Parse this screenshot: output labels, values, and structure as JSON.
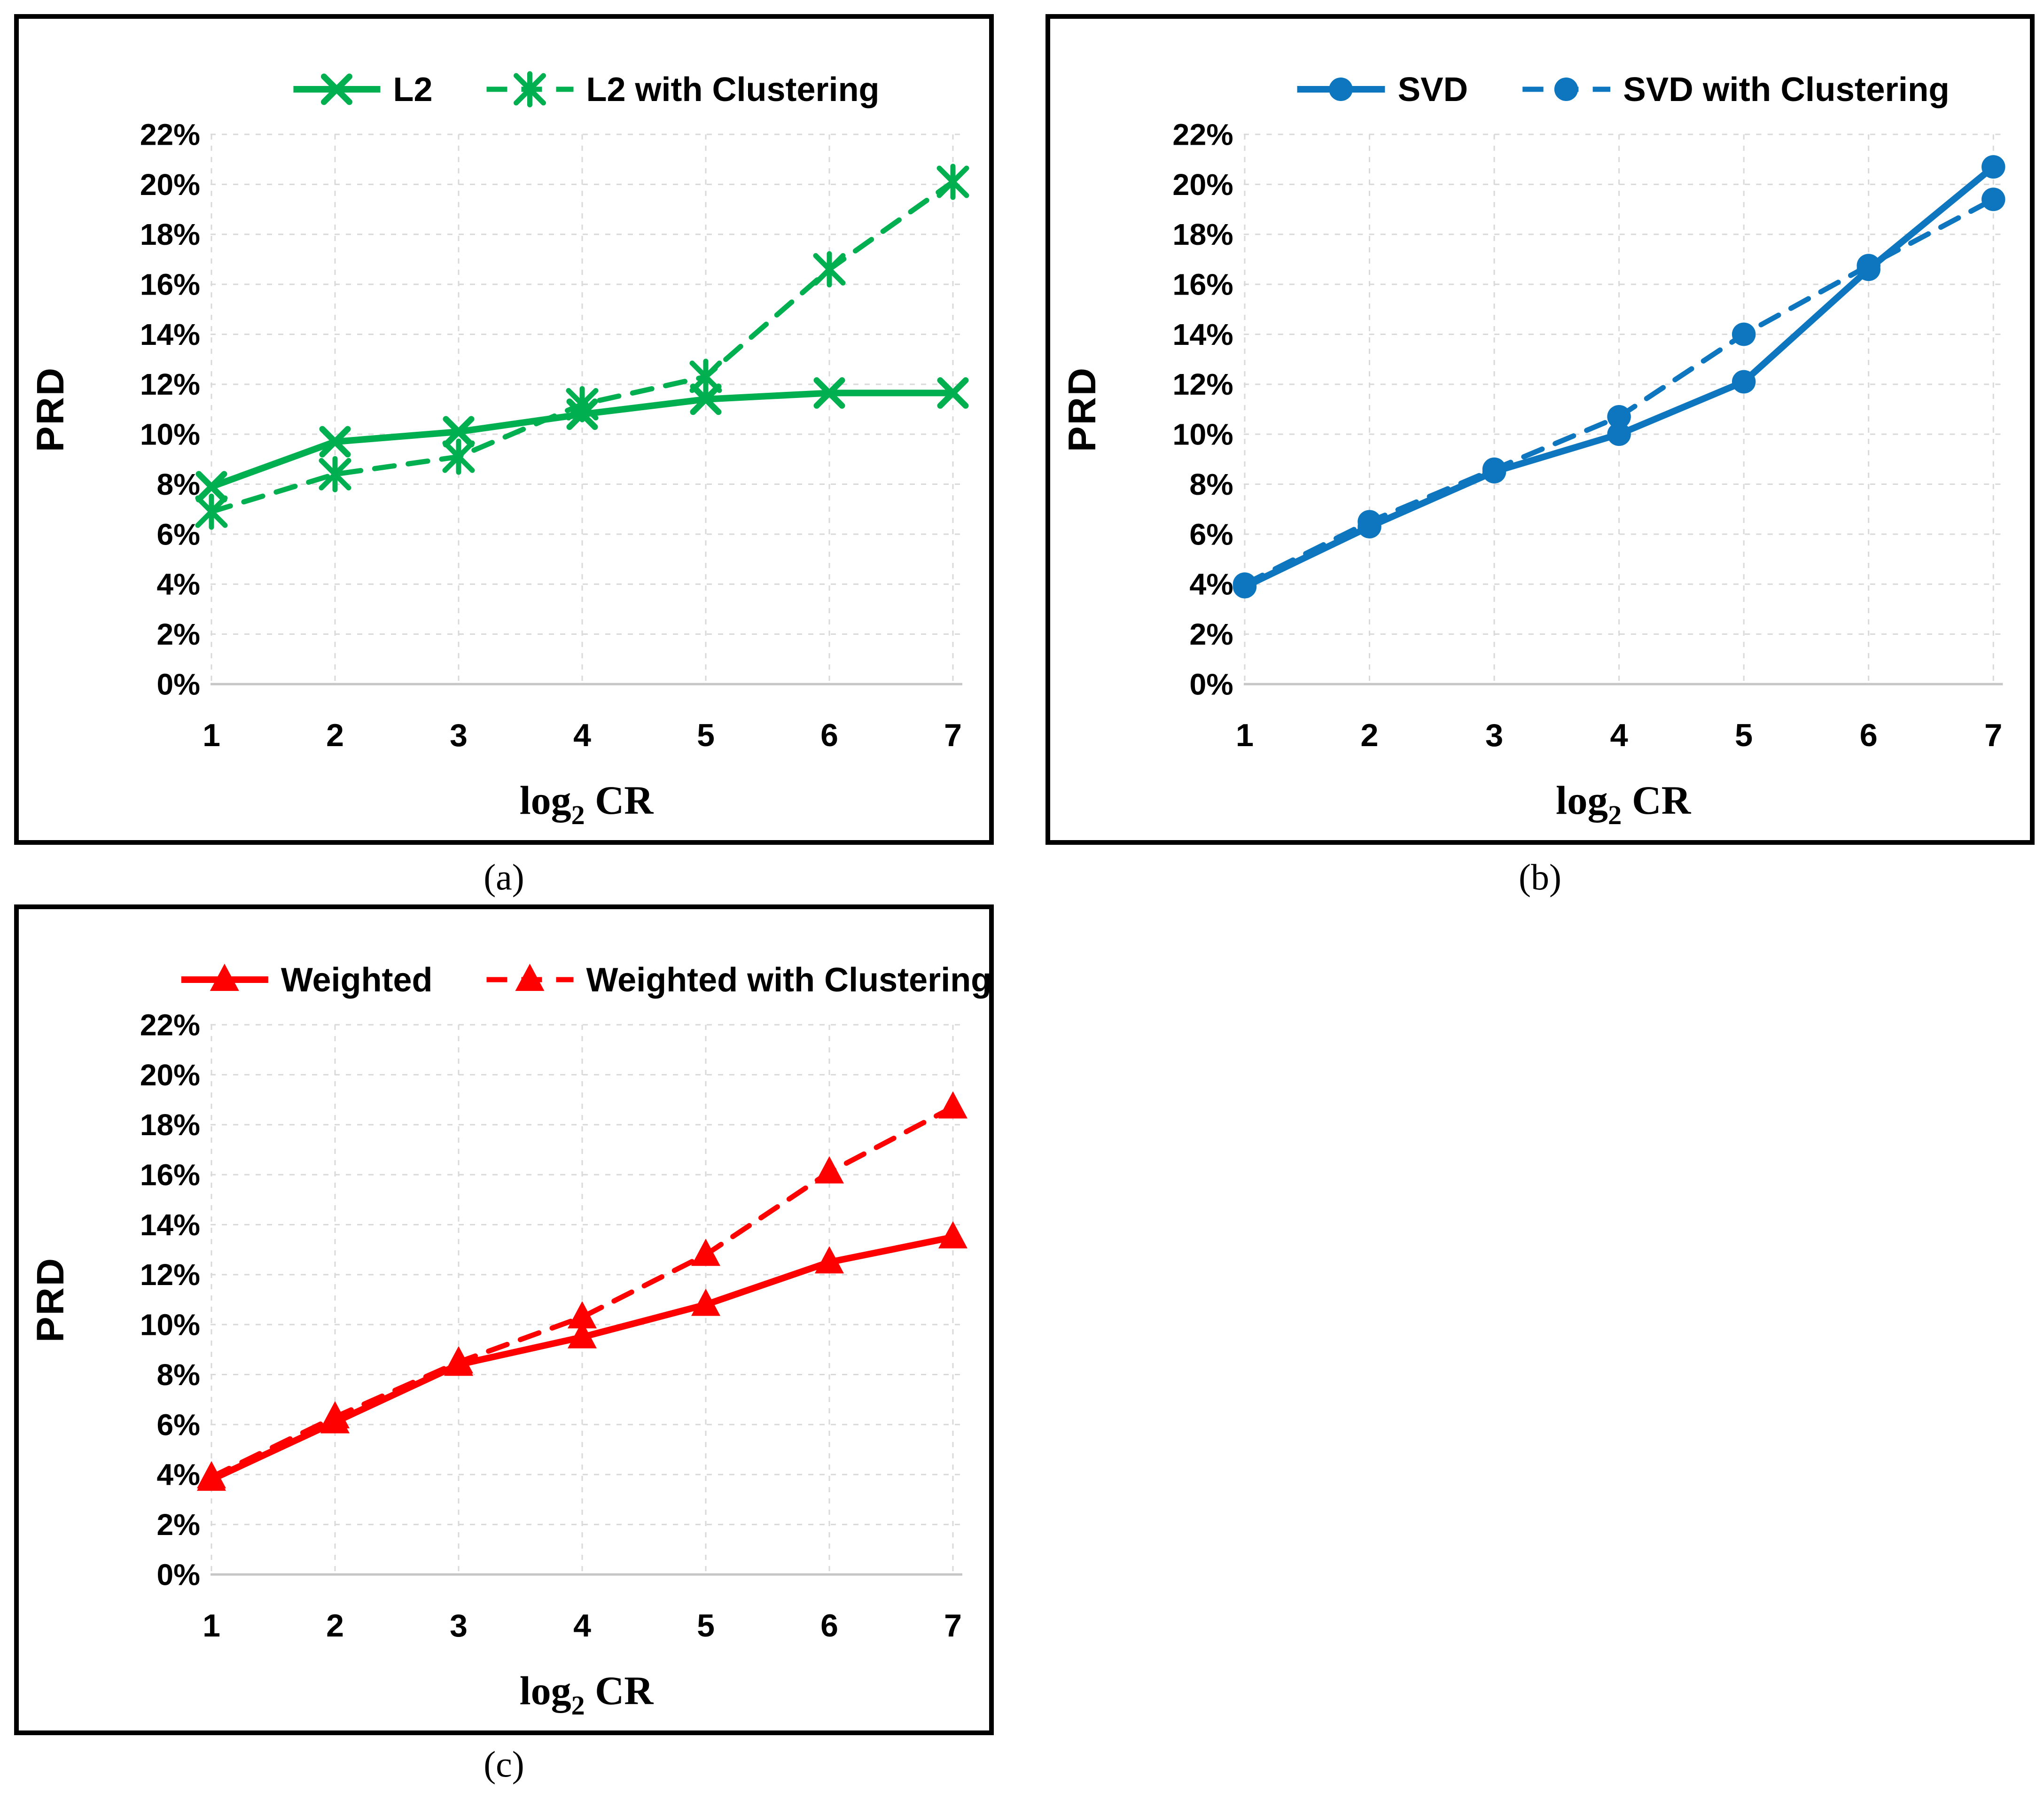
{
  "ui": {
    "background": "#FFFFFF",
    "panel_border_color": "#000000",
    "grid_color": "#D9D9D9",
    "axis_line_color": "#C6C6C6",
    "text_color": "#000000"
  },
  "chart_data": [
    {
      "id": "a",
      "type": "line",
      "caption": "(a)",
      "xlabel": "log2 CR",
      "xlabel_base": "log",
      "xlabel_sub": "2",
      "xlabel_rest": " CR",
      "ylabel": "PRD",
      "categories": [
        1,
        2,
        3,
        4,
        5,
        6,
        7
      ],
      "ylim": [
        0,
        22
      ],
      "ytick_step": 2,
      "ytick_suffix": "%",
      "grid": true,
      "legend_position": "top",
      "color": "#00B050",
      "series": [
        {
          "name": "L2",
          "dash": false,
          "marker": "x",
          "values": [
            7.9,
            9.7,
            10.1,
            10.8,
            11.4,
            11.65,
            11.65
          ]
        },
        {
          "name": "L2 with Clustering",
          "dash": true,
          "marker": "star",
          "values": [
            6.9,
            8.4,
            9.1,
            11.2,
            12.3,
            16.6,
            20.1
          ]
        }
      ]
    },
    {
      "id": "b",
      "type": "line",
      "caption": "(b)",
      "xlabel": "log2 CR",
      "xlabel_base": "log",
      "xlabel_sub": "2",
      "xlabel_rest": " CR",
      "ylabel": "PRD",
      "categories": [
        1,
        2,
        3,
        4,
        5,
        6,
        7
      ],
      "ylim": [
        0,
        22
      ],
      "ytick_step": 2,
      "ytick_suffix": "%",
      "grid": true,
      "legend_position": "top",
      "color": "#0D76BE",
      "series": [
        {
          "name": "SVD",
          "dash": false,
          "marker": "circle",
          "values": [
            3.9,
            6.3,
            8.5,
            10.0,
            12.1,
            16.6,
            20.7
          ]
        },
        {
          "name": "SVD with Clustering",
          "dash": true,
          "marker": "circle",
          "values": [
            4.0,
            6.5,
            8.6,
            10.7,
            14.0,
            16.75,
            19.4
          ]
        }
      ]
    },
    {
      "id": "c",
      "type": "line",
      "caption": "(c)",
      "xlabel": "log2 CR",
      "xlabel_base": "log",
      "xlabel_sub": "2",
      "xlabel_rest": " CR",
      "ylabel": "PRD",
      "categories": [
        1,
        2,
        3,
        4,
        5,
        6,
        7
      ],
      "ylim": [
        0,
        22
      ],
      "ytick_step": 2,
      "ytick_suffix": "%",
      "grid": true,
      "legend_position": "top",
      "color": "#FF0000",
      "series": [
        {
          "name": "Weighted",
          "dash": false,
          "marker": "triangle",
          "values": [
            3.8,
            6.1,
            8.4,
            9.5,
            10.8,
            12.5,
            13.5
          ]
        },
        {
          "name": "Weighted with Clustering",
          "dash": true,
          "marker": "triangle",
          "values": [
            3.9,
            6.3,
            8.5,
            10.3,
            12.8,
            16.1,
            18.7
          ]
        }
      ]
    }
  ]
}
